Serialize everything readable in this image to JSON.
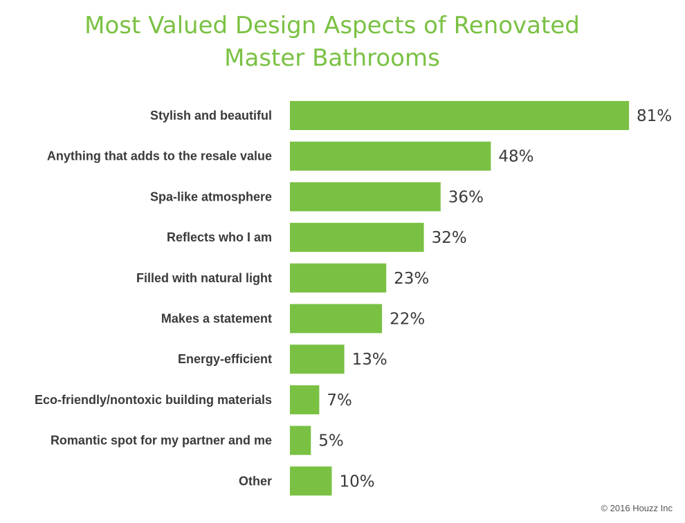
{
  "chart_data": {
    "type": "bar",
    "orientation": "horizontal",
    "title_lines": [
      "Most Valued Design Aspects of Renovated",
      "Master Bathrooms"
    ],
    "categories": [
      "Stylish and beautiful",
      "Anything that adds to the resale value",
      "Spa-like atmosphere",
      "Reflects who I am",
      "Filled with natural light",
      "Makes a statement",
      "Energy-efficient",
      "Eco-friendly/nontoxic building materials",
      "Romantic spot for my partner and me",
      "Other"
    ],
    "values": [
      81,
      48,
      36,
      32,
      23,
      22,
      13,
      7,
      5,
      10
    ],
    "value_labels": [
      "81%",
      "48%",
      "36%",
      "32%",
      "23%",
      "22%",
      "13%",
      "7%",
      "5%",
      "10%"
    ],
    "unit": "%",
    "bar_color": "#7ac143",
    "grid": false,
    "legend": "none"
  },
  "colors": {
    "title": "#7ac143",
    "bar": "#7ac143",
    "text": "#3a3a3a"
  },
  "footer": {
    "copyright": "© 2016 Houzz Inc"
  }
}
